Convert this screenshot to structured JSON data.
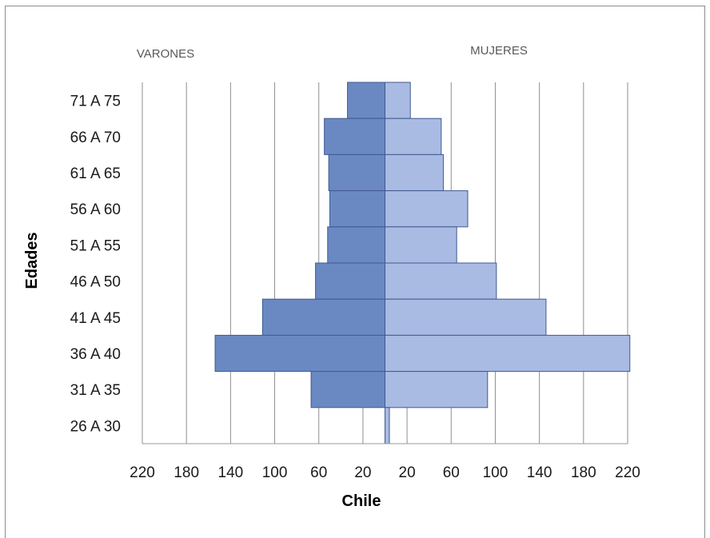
{
  "chart_data": {
    "type": "bar",
    "orientation": "horizontal-population-pyramid",
    "left_label": "VARONES",
    "right_label": "MUJERES",
    "xlabel": "Chile",
    "ylabel": "Edades",
    "categories": [
      "71 A 75",
      "66 A 70",
      "61 A 65",
      "56 A 60",
      "51 A 55",
      "46 A 50",
      "41 A 45",
      "36 A 40",
      "31 A 35",
      "26 A 30"
    ],
    "series": [
      {
        "name": "VARONES",
        "color": "#6a89c3",
        "values": [
          34,
          55,
          51,
          50,
          52,
          63,
          111,
          154,
          67,
          0
        ]
      },
      {
        "name": "MUJERES",
        "color": "#a9bbe3",
        "values": [
          23,
          51,
          53,
          75,
          65,
          101,
          146,
          222,
          93,
          4
        ]
      }
    ],
    "x_ticks_left": [
      "220",
      "180",
      "140",
      "100",
      "60",
      "20"
    ],
    "x_ticks_right": [
      "20",
      "60",
      "100",
      "140",
      "180",
      "220"
    ],
    "xlim": [
      -220,
      220
    ],
    "grid": true
  }
}
